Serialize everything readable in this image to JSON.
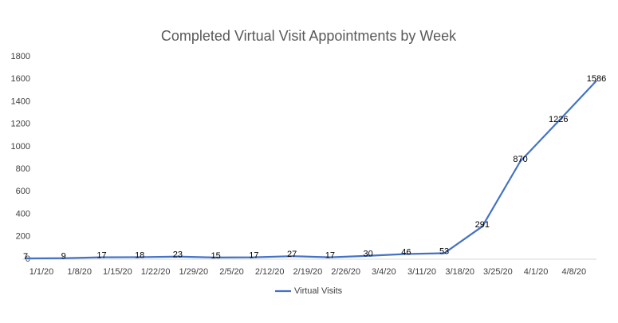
{
  "chart_data": {
    "type": "line",
    "title": "Completed Virtual Visit Appointments by Week",
    "categories": [
      "1/1/20",
      "1/8/20",
      "1/15/20",
      "1/22/20",
      "1/29/20",
      "2/5/20",
      "2/12/20",
      "2/19/20",
      "2/26/20",
      "3/4/20",
      "3/11/20",
      "3/18/20",
      "3/25/20",
      "4/1/20",
      "4/8/20",
      null
    ],
    "series": [
      {
        "name": "Virtual Visits",
        "color": "#4472c4",
        "values": [
          7,
          9,
          17,
          18,
          23,
          15,
          17,
          27,
          17,
          30,
          46,
          53,
          291,
          870,
          1226,
          1586
        ]
      }
    ],
    "ylim": [
      0,
      1800
    ],
    "yticks": [
      0,
      200,
      400,
      600,
      800,
      1000,
      1200,
      1400,
      1600,
      1800
    ],
    "grid": false,
    "legend": "bottom"
  }
}
